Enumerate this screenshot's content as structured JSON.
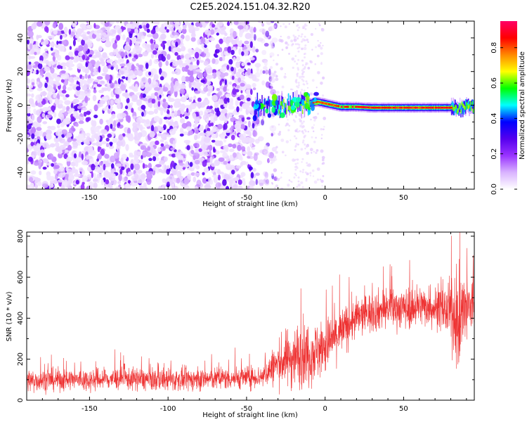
{
  "figure": {
    "title": "C2E5.2024.151.04.32.R20"
  },
  "colors": {
    "snr_line": "#ee3333",
    "colormap": [
      "#ffffff",
      "#d9b3ff",
      "#9933ff",
      "#5500ee",
      "#0000ff",
      "#00ffff",
      "#00ff00",
      "#ffff00",
      "#ff8800",
      "#ff0000",
      "#ff0066"
    ]
  },
  "chart_data": [
    {
      "type": "heatmap",
      "xlabel": "Height of straight line (km)",
      "ylabel": "Frequency (Hz)",
      "xlim": [
        -190,
        95
      ],
      "ylim": [
        -50,
        50
      ],
      "xticks": [
        -150,
        -100,
        -50,
        0,
        50
      ],
      "yticks": [
        -40,
        -20,
        0,
        20,
        40
      ],
      "colorbar": {
        "label": "Normalized spectral amplitude",
        "range": [
          0,
          0.95
        ],
        "ticks": [
          0.0,
          0.2,
          0.4,
          0.6,
          0.8
        ]
      },
      "regions": [
        {
          "x_range": [
            -190,
            -35
          ],
          "freq_range": [
            -50,
            50
          ],
          "amplitude": 0.05,
          "description": "scattered noise"
        },
        {
          "x_range": [
            -45,
            -10
          ],
          "freq_range": [
            -10,
            8
          ],
          "amplitude": 0.3
        },
        {
          "x_range": [
            -10,
            0
          ],
          "freq_range": [
            -2,
            4
          ],
          "amplitude": 0.75
        },
        {
          "x_range": [
            0,
            80
          ],
          "freq_range": [
            -4,
            0
          ],
          "amplitude": 0.85
        },
        {
          "x_range": [
            80,
            95
          ],
          "freq_range": [
            -6,
            4
          ],
          "amplitude": 0.3
        }
      ],
      "ridge": {
        "x": [
          -45,
          -35,
          -25,
          -15,
          -10,
          -5,
          0,
          5,
          10,
          20,
          30,
          40,
          50,
          60,
          70,
          80,
          85,
          90,
          95
        ],
        "freq": [
          -2,
          0,
          -1,
          1,
          1,
          2,
          1,
          0,
          -1,
          -1,
          -1.5,
          -1.5,
          -1.5,
          -1.5,
          -1.5,
          -1.5,
          -2,
          -1,
          -1
        ]
      }
    },
    {
      "type": "line",
      "xlabel": "Height of straight line (km)",
      "ylabel": "SNR (10 * v/v)",
      "xlim": [
        -190,
        95
      ],
      "ylim": [
        0,
        820
      ],
      "xticks": [
        -150,
        -100,
        -50,
        0,
        50
      ],
      "yticks": [
        0,
        200,
        400,
        600,
        800
      ],
      "series": [
        {
          "x": [
            -190,
            -170,
            -150,
            -130,
            -110,
            -90,
            -70,
            -50,
            -40,
            -35,
            -30,
            -25,
            -20,
            -15,
            -10,
            -5,
            0,
            5,
            10,
            15,
            20,
            25,
            30,
            35,
            40,
            45,
            50,
            55,
            60,
            65,
            70,
            75,
            80,
            85,
            90,
            95
          ],
          "mean": [
            95,
            100,
            100,
            105,
            100,
            100,
            105,
            110,
            115,
            150,
            180,
            200,
            210,
            230,
            230,
            240,
            260,
            300,
            330,
            370,
            400,
            420,
            430,
            440,
            450,
            450,
            450,
            450,
            460,
            460,
            450,
            440,
            430,
            380,
            440,
            460
          ],
          "spread": [
            60,
            60,
            60,
            60,
            60,
            60,
            60,
            60,
            60,
            90,
            120,
            150,
            170,
            180,
            170,
            160,
            150,
            140,
            130,
            120,
            110,
            110,
            110,
            110,
            110,
            110,
            110,
            110,
            110,
            110,
            110,
            110,
            170,
            260,
            220,
            160
          ]
        }
      ]
    }
  ]
}
